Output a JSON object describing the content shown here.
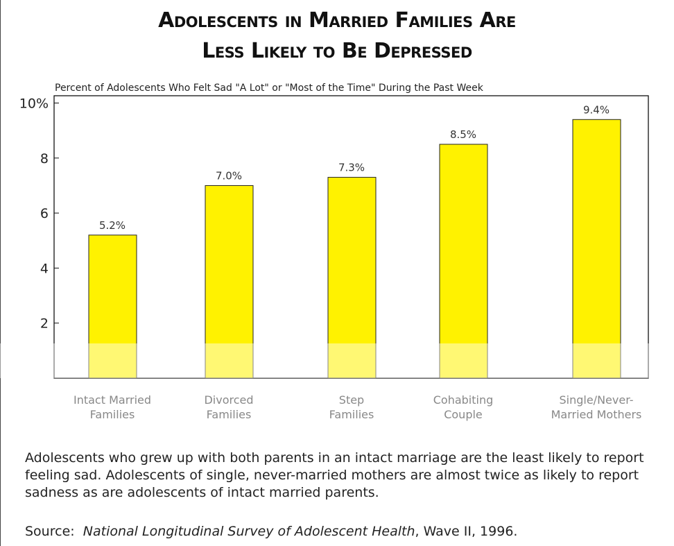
{
  "title_line1": "Adolescents in Married Families Are",
  "title_line2": "Less Likely to Be Depressed",
  "chart_data": {
    "type": "bar",
    "subtitle": "Percent of Adolescents Who Felt Sad \"A Lot\" or \"Most of the Time\" During the Past Week",
    "categories": [
      [
        "Intact Married",
        "Families"
      ],
      [
        "Divorced",
        "Families"
      ],
      [
        "Step",
        "Families"
      ],
      [
        "Cohabiting",
        "Couple"
      ],
      [
        "Single/Never-",
        "Married Mothers"
      ]
    ],
    "values": [
      5.2,
      7.0,
      7.3,
      8.5,
      9.4
    ],
    "data_labels": [
      "5.2%",
      "7.0%",
      "7.3%",
      "8.5%",
      "9.4%"
    ],
    "yticks": [
      {
        "v": 10,
        "label": "10%"
      },
      {
        "v": 8,
        "label": "8"
      },
      {
        "v": 6,
        "label": "6"
      },
      {
        "v": 4,
        "label": "4"
      },
      {
        "v": 2,
        "label": "2"
      }
    ],
    "ylim": [
      0,
      10.3
    ],
    "bar_color": "#FFF200",
    "grid": false
  },
  "caption": "Adolescents who grew up with both parents in an intact marriage are the least likely to report feeling sad. Adolescents of single, never-married mothers are almost twice as likely to report sadness as are adolescents of intact married parents.",
  "source": {
    "label": "Source:",
    "title": "National Longitudinal Survey of Adolescent Health",
    "rest": ", Wave II, 1996."
  }
}
